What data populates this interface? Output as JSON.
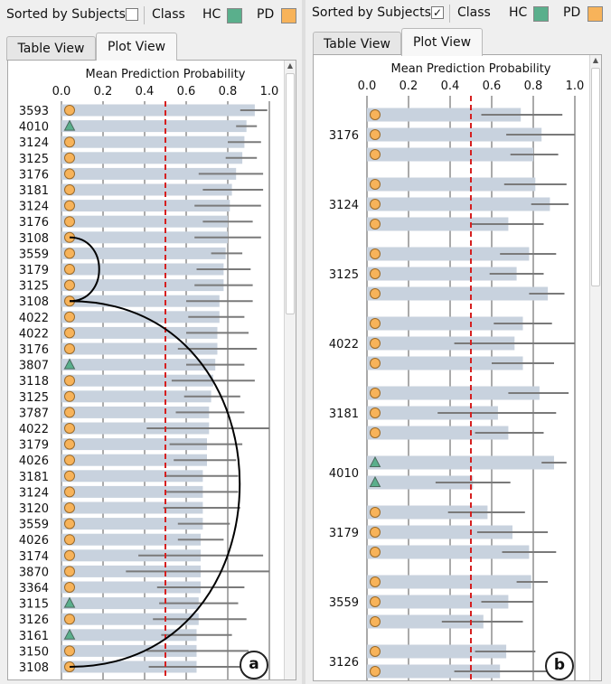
{
  "toolbar": {
    "sort_label": "Sorted by Subjects",
    "class_label": "Class",
    "hc_label": "HC",
    "pd_label": "PD",
    "sorted_checked_mark": "✓"
  },
  "tabs": {
    "table_view": "Table View",
    "plot_view": "Plot View"
  },
  "colors": {
    "hc": "#5aaf8c",
    "pd": "#f7b35a",
    "bar": "#c8d2de",
    "whisker": "#7a7a7a",
    "threshold": "#d62020",
    "grid": "#555555"
  },
  "chart_data": [
    {
      "panel": "a",
      "type": "bar",
      "sorted_by_subjects": false,
      "xlabel": "Mean Prediction Probability",
      "xlim": [
        0,
        1
      ],
      "x_ticks": [
        "0.0",
        "0.2",
        "0.4",
        "0.6",
        "0.8",
        "1.0"
      ],
      "threshold": 0.5,
      "badge": "a",
      "rows": [
        {
          "label": "3593",
          "class": "PD",
          "mean": 0.93,
          "lo": 0.86,
          "hi": 0.99
        },
        {
          "label": "4010",
          "class": "HC",
          "mean": 0.89,
          "lo": 0.84,
          "hi": 0.94
        },
        {
          "label": "3124",
          "class": "PD",
          "mean": 0.88,
          "lo": 0.8,
          "hi": 0.96
        },
        {
          "label": "3125",
          "class": "PD",
          "mean": 0.87,
          "lo": 0.79,
          "hi": 0.94
        },
        {
          "label": "3176",
          "class": "PD",
          "mean": 0.84,
          "lo": 0.66,
          "hi": 0.97
        },
        {
          "label": "3181",
          "class": "PD",
          "mean": 0.82,
          "lo": 0.68,
          "hi": 0.97
        },
        {
          "label": "3124",
          "class": "PD",
          "mean": 0.81,
          "lo": 0.64,
          "hi": 0.96
        },
        {
          "label": "3176",
          "class": "PD",
          "mean": 0.8,
          "lo": 0.68,
          "hi": 0.92
        },
        {
          "label": "3108",
          "class": "PD",
          "mean": 0.8,
          "lo": 0.64,
          "hi": 0.96
        },
        {
          "label": "3559",
          "class": "PD",
          "mean": 0.79,
          "lo": 0.72,
          "hi": 0.87
        },
        {
          "label": "3179",
          "class": "PD",
          "mean": 0.78,
          "lo": 0.65,
          "hi": 0.91
        },
        {
          "label": "3125",
          "class": "PD",
          "mean": 0.78,
          "lo": 0.64,
          "hi": 0.92
        },
        {
          "label": "3108",
          "class": "PD",
          "mean": 0.76,
          "lo": 0.6,
          "hi": 0.92
        },
        {
          "label": "4022",
          "class": "PD",
          "mean": 0.76,
          "lo": 0.61,
          "hi": 0.88
        },
        {
          "label": "4022",
          "class": "PD",
          "mean": 0.75,
          "lo": 0.6,
          "hi": 0.9
        },
        {
          "label": "3176",
          "class": "PD",
          "mean": 0.75,
          "lo": 0.56,
          "hi": 0.94
        },
        {
          "label": "3807",
          "class": "HC",
          "mean": 0.74,
          "lo": 0.6,
          "hi": 0.88
        },
        {
          "label": "3118",
          "class": "PD",
          "mean": 0.73,
          "lo": 0.53,
          "hi": 0.93
        },
        {
          "label": "3125",
          "class": "PD",
          "mean": 0.72,
          "lo": 0.59,
          "hi": 0.86
        },
        {
          "label": "3787",
          "class": "PD",
          "mean": 0.71,
          "lo": 0.55,
          "hi": 0.88
        },
        {
          "label": "4022",
          "class": "PD",
          "mean": 0.71,
          "lo": 0.41,
          "hi": 1.0
        },
        {
          "label": "3179",
          "class": "PD",
          "mean": 0.7,
          "lo": 0.52,
          "hi": 0.87
        },
        {
          "label": "4026",
          "class": "PD",
          "mean": 0.7,
          "lo": 0.54,
          "hi": 0.84
        },
        {
          "label": "3181",
          "class": "PD",
          "mean": 0.68,
          "lo": 0.5,
          "hi": 0.85
        },
        {
          "label": "3124",
          "class": "PD",
          "mean": 0.68,
          "lo": 0.5,
          "hi": 0.85
        },
        {
          "label": "3120",
          "class": "PD",
          "mean": 0.68,
          "lo": 0.49,
          "hi": 0.86
        },
        {
          "label": "3559",
          "class": "PD",
          "mean": 0.68,
          "lo": 0.56,
          "hi": 0.81
        },
        {
          "label": "4026",
          "class": "PD",
          "mean": 0.67,
          "lo": 0.56,
          "hi": 0.78
        },
        {
          "label": "3174",
          "class": "PD",
          "mean": 0.67,
          "lo": 0.37,
          "hi": 0.97
        },
        {
          "label": "3870",
          "class": "PD",
          "mean": 0.67,
          "lo": 0.31,
          "hi": 1.0
        },
        {
          "label": "3364",
          "class": "PD",
          "mean": 0.67,
          "lo": 0.46,
          "hi": 0.88
        },
        {
          "label": "3115",
          "class": "HC",
          "mean": 0.66,
          "lo": 0.47,
          "hi": 0.85
        },
        {
          "label": "3126",
          "class": "PD",
          "mean": 0.66,
          "lo": 0.44,
          "hi": 0.89
        },
        {
          "label": "3161",
          "class": "HC",
          "mean": 0.65,
          "lo": 0.48,
          "hi": 0.82
        },
        {
          "label": "3150",
          "class": "PD",
          "mean": 0.65,
          "lo": 0.41,
          "hi": 0.9
        },
        {
          "label": "3108",
          "class": "PD",
          "mean": 0.65,
          "lo": 0.42,
          "hi": 0.88
        }
      ],
      "connectors": [
        {
          "from_row": 8,
          "to_row": 12
        },
        {
          "from_row": 12,
          "to_row": 35
        }
      ]
    },
    {
      "panel": "b",
      "type": "bar",
      "sorted_by_subjects": true,
      "xlabel": "Mean Prediction Probability",
      "xlim": [
        0,
        1
      ],
      "x_ticks": [
        "0.0",
        "0.2",
        "0.4",
        "0.6",
        "0.8",
        "1.0"
      ],
      "threshold": 0.5,
      "badge": "b",
      "groups": [
        {
          "label": "3176",
          "rows": [
            {
              "class": "PD",
              "mean": 0.74,
              "lo": 0.55,
              "hi": 0.94
            },
            {
              "class": "PD",
              "mean": 0.84,
              "lo": 0.67,
              "hi": 1.0
            },
            {
              "class": "PD",
              "mean": 0.8,
              "lo": 0.69,
              "hi": 0.92
            }
          ]
        },
        {
          "label": "3124",
          "rows": [
            {
              "class": "PD",
              "mean": 0.81,
              "lo": 0.66,
              "hi": 0.96
            },
            {
              "class": "PD",
              "mean": 0.88,
              "lo": 0.79,
              "hi": 0.97
            },
            {
              "class": "PD",
              "mean": 0.68,
              "lo": 0.5,
              "hi": 0.85
            }
          ]
        },
        {
          "label": "3125",
          "rows": [
            {
              "class": "PD",
              "mean": 0.78,
              "lo": 0.64,
              "hi": 0.91
            },
            {
              "class": "PD",
              "mean": 0.72,
              "lo": 0.59,
              "hi": 0.85
            },
            {
              "class": "PD",
              "mean": 0.87,
              "lo": 0.78,
              "hi": 0.95
            }
          ]
        },
        {
          "label": "4022",
          "rows": [
            {
              "class": "PD",
              "mean": 0.75,
              "lo": 0.61,
              "hi": 0.89
            },
            {
              "class": "PD",
              "mean": 0.71,
              "lo": 0.42,
              "hi": 1.0
            },
            {
              "class": "PD",
              "mean": 0.75,
              "lo": 0.6,
              "hi": 0.9
            }
          ]
        },
        {
          "label": "3181",
          "rows": [
            {
              "class": "PD",
              "mean": 0.83,
              "lo": 0.68,
              "hi": 0.97
            },
            {
              "class": "PD",
              "mean": 0.63,
              "lo": 0.34,
              "hi": 0.91
            },
            {
              "class": "PD",
              "mean": 0.68,
              "lo": 0.52,
              "hi": 0.85
            }
          ]
        },
        {
          "label": "4010",
          "rows": [
            {
              "class": "HC",
              "mean": 0.9,
              "lo": 0.84,
              "hi": 0.96
            },
            {
              "class": "HC",
              "mean": 0.51,
              "lo": 0.33,
              "hi": 0.69
            }
          ]
        },
        {
          "label": "3179",
          "rows": [
            {
              "class": "PD",
              "mean": 0.58,
              "lo": 0.39,
              "hi": 0.76
            },
            {
              "class": "PD",
              "mean": 0.7,
              "lo": 0.53,
              "hi": 0.87
            },
            {
              "class": "PD",
              "mean": 0.78,
              "lo": 0.65,
              "hi": 0.91
            }
          ]
        },
        {
          "label": "3559",
          "rows": [
            {
              "class": "PD",
              "mean": 0.79,
              "lo": 0.72,
              "hi": 0.87
            },
            {
              "class": "PD",
              "mean": 0.68,
              "lo": 0.55,
              "hi": 0.8
            },
            {
              "class": "PD",
              "mean": 0.56,
              "lo": 0.36,
              "hi": 0.75
            }
          ]
        },
        {
          "label": "3126",
          "rows": [
            {
              "class": "PD",
              "mean": 0.67,
              "lo": 0.52,
              "hi": 0.81
            },
            {
              "class": "PD",
              "mean": 0.64,
              "lo": 0.42,
              "hi": 0.87
            }
          ]
        }
      ]
    }
  ]
}
